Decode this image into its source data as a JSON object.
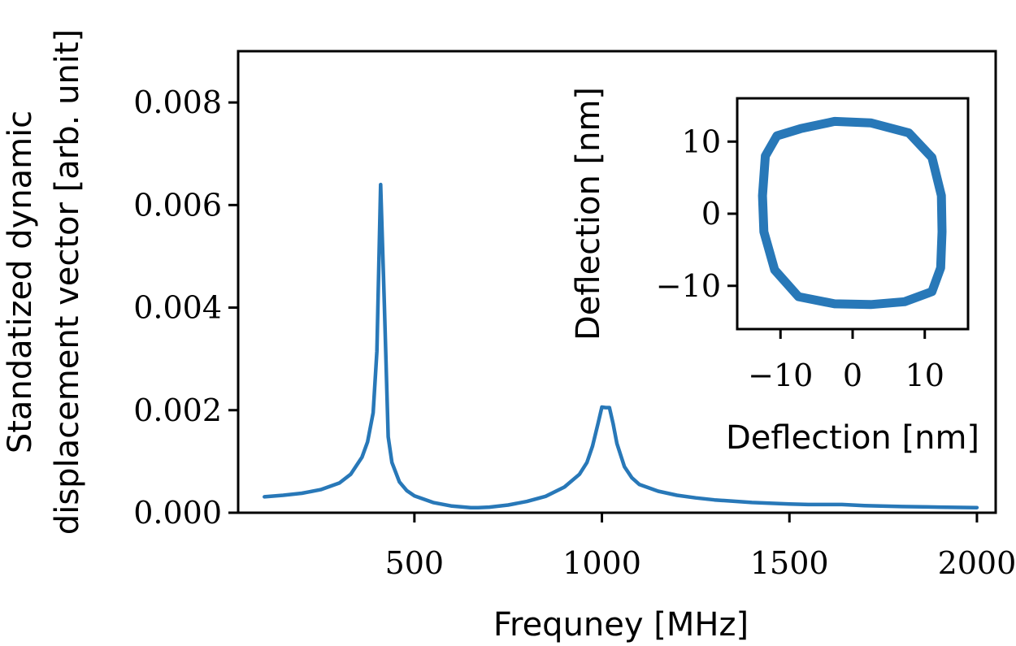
{
  "chart_data": [
    {
      "type": "line",
      "xlabel": "Frequney [MHz]",
      "ylabel_lines": [
        "Standatized dynamic",
        "displacement vector [arb. unit]"
      ],
      "xlim": [
        30,
        2050
      ],
      "ylim": [
        0,
        0.009
      ],
      "xticks": [
        500,
        1000,
        1500,
        2000
      ],
      "xtick_labels": [
        "500",
        "1000",
        "1500",
        "2000"
      ],
      "yticks": [
        0,
        0.002,
        0.004,
        0.006,
        0.008
      ],
      "ytick_labels": [
        "0.000",
        "0.002",
        "0.004",
        "0.006",
        "0.008"
      ],
      "grid": false,
      "color": "#2878b8",
      "series": [
        {
          "x": [
            100,
            150,
            200,
            250,
            300,
            330,
            360,
            375,
            390,
            400,
            410,
            420,
            430,
            440,
            460,
            480,
            500,
            550,
            600,
            650,
            670,
            700,
            750,
            800,
            850,
            900,
            940,
            960,
            975,
            990,
            1000,
            1010,
            1020,
            1030,
            1040,
            1060,
            1080,
            1100,
            1150,
            1200,
            1250,
            1300,
            1400,
            1500,
            1550,
            1600,
            1640,
            1700,
            1800,
            1900,
            2000
          ],
          "y": [
            0.00031,
            0.00034,
            0.00038,
            0.00045,
            0.00058,
            0.00075,
            0.00108,
            0.00138,
            0.00195,
            0.00315,
            0.0064,
            0.00405,
            0.00148,
            0.00098,
            0.0006,
            0.00043,
            0.00033,
            0.0002,
            0.00013,
            0.0001,
            0.0001,
            0.00011,
            0.00015,
            0.00022,
            0.00032,
            0.0005,
            0.00075,
            0.00098,
            0.0013,
            0.00175,
            0.00206,
            0.00205,
            0.00205,
            0.00173,
            0.00135,
            0.0009,
            0.00068,
            0.00055,
            0.00042,
            0.00034,
            0.00029,
            0.00025,
            0.0002,
            0.00017,
            0.00016,
            0.00016,
            0.00016,
            0.00014,
            0.00012,
            0.00011,
            0.0001
          ]
        }
      ]
    },
    {
      "type": "line",
      "inset": true,
      "xlabel": "Deflection [nm]",
      "ylabel": "Deflection [nm]",
      "xlim": [
        -16,
        16
      ],
      "ylim": [
        -16,
        16
      ],
      "xticks": [
        -10,
        0,
        10
      ],
      "xtick_labels": [
        "−10",
        "0",
        "10"
      ],
      "yticks": [
        -10,
        0,
        10
      ],
      "ytick_labels": [
        "−10",
        "0",
        "10"
      ],
      "grid": false,
      "color": "#2878b8",
      "series": [
        {
          "x": [
            -2.5,
            2.5,
            7.8,
            11.0,
            12.3,
            12.4,
            12.2,
            11.0,
            7.2,
            2.5,
            -2.5,
            -7.5,
            -10.8,
            -12.3,
            -12.5,
            -12.1,
            -10.5,
            -7.2,
            -2.5
          ],
          "y": [
            12.8,
            12.6,
            11.2,
            7.8,
            2.5,
            -2.5,
            -7.5,
            -10.8,
            -12.2,
            -12.6,
            -12.5,
            -11.5,
            -7.8,
            -2.5,
            2.5,
            8.0,
            10.8,
            11.8,
            12.8
          ]
        }
      ]
    }
  ]
}
